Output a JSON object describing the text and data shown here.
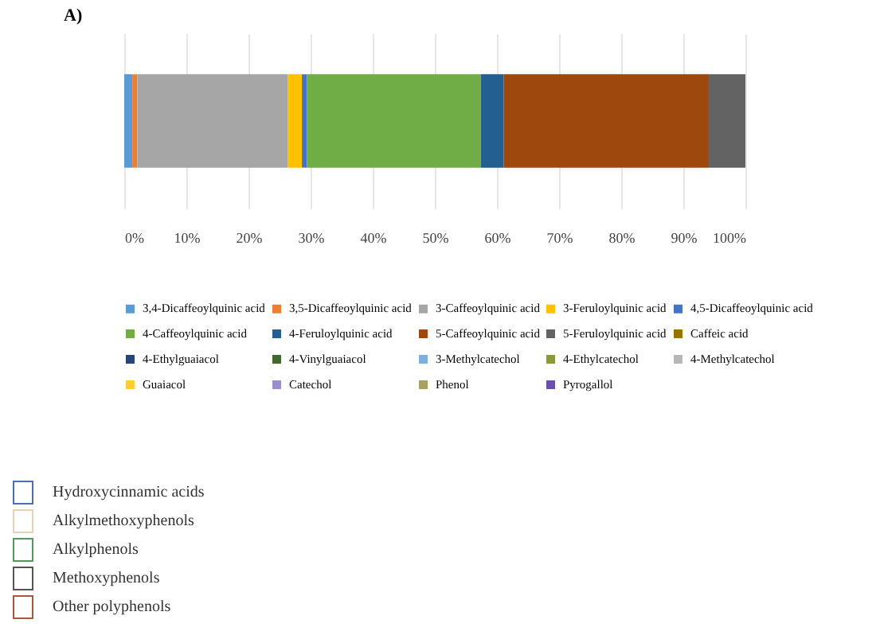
{
  "chart_data": {
    "type": "bar",
    "title": "A)",
    "orientation": "horizontal",
    "stacked": true,
    "categories": [
      null
    ],
    "xlim": [
      0,
      100
    ],
    "xticks": [
      {
        "value": 0,
        "label": "0%"
      },
      {
        "value": 10,
        "label": "10%"
      },
      {
        "value": 20,
        "label": "20%"
      },
      {
        "value": 30,
        "label": "30%"
      },
      {
        "value": 40,
        "label": "40%"
      },
      {
        "value": 50,
        "label": "50%"
      },
      {
        "value": 60,
        "label": "60%"
      },
      {
        "value": 70,
        "label": "70%"
      },
      {
        "value": 80,
        "label": "80%"
      },
      {
        "value": 90,
        "label": "90%"
      },
      {
        "value": 100,
        "label": "100%"
      }
    ],
    "grid": "x",
    "legend": "bottom",
    "series": [
      {
        "name": "3,4-Dicaffeoylquinic acid",
        "color": "#5b9bd5",
        "values": [
          1.3
        ]
      },
      {
        "name": "3,5-Dicaffeoylquinic acid",
        "color": "#ed7d31",
        "values": [
          0.8
        ]
      },
      {
        "name": "3-Caffeoylquinic acid",
        "color": "#a5a5a5",
        "values": [
          24.2
        ]
      },
      {
        "name": "3-Feruloylquinic acid",
        "color": "#ffc000",
        "values": [
          2.3
        ]
      },
      {
        "name": "4,5-Dicaffeoylquinic acid",
        "color": "#4472c4",
        "values": [
          0.8
        ]
      },
      {
        "name": "4-Caffeoylquinic acid",
        "color": "#70ad47",
        "values": [
          28
        ]
      },
      {
        "name": "4-Feruloylquinic acid",
        "color": "#255e91",
        "values": [
          3.7
        ]
      },
      {
        "name": "5-Caffeoylquinic acid",
        "color": "#9e480e",
        "values": [
          33
        ]
      },
      {
        "name": "5-Feruloylquinic acid",
        "color": "#636363",
        "values": [
          5.9
        ]
      },
      {
        "name": "Caffeic acid",
        "color": "#997300",
        "values": [
          null
        ]
      },
      {
        "name": "4-Ethylguaiacol",
        "color": "#264478",
        "values": [
          null
        ]
      },
      {
        "name": "4-Vinylguaiacol",
        "color": "#43682b",
        "values": [
          null
        ]
      },
      {
        "name": "3-Methylcatechol",
        "color": "#7cafdd",
        "values": [
          null
        ]
      },
      {
        "name": "4-Ethylcatechol",
        "color": "#8a9a3a",
        "values": [
          null
        ]
      },
      {
        "name": "4-Methylcatechol",
        "color": "#b7b7b7",
        "values": [
          null
        ]
      },
      {
        "name": "Guaiacol",
        "color": "#ffcd33",
        "values": [
          null
        ]
      },
      {
        "name": "Catechol",
        "color": "#9a8ed0",
        "values": [
          null
        ]
      },
      {
        "name": "Phenol",
        "color": "#a8a060",
        "values": [
          null
        ]
      },
      {
        "name": "Pyrogallol",
        "color": "#6a4fb0",
        "values": [
          null
        ]
      }
    ],
    "annotations": [
      "Hydroxycinnamic acids",
      "Alkylmethoxyphenols",
      "Alkylphenols",
      "Methoxyphenols",
      "Other polyphenols"
    ]
  }
}
